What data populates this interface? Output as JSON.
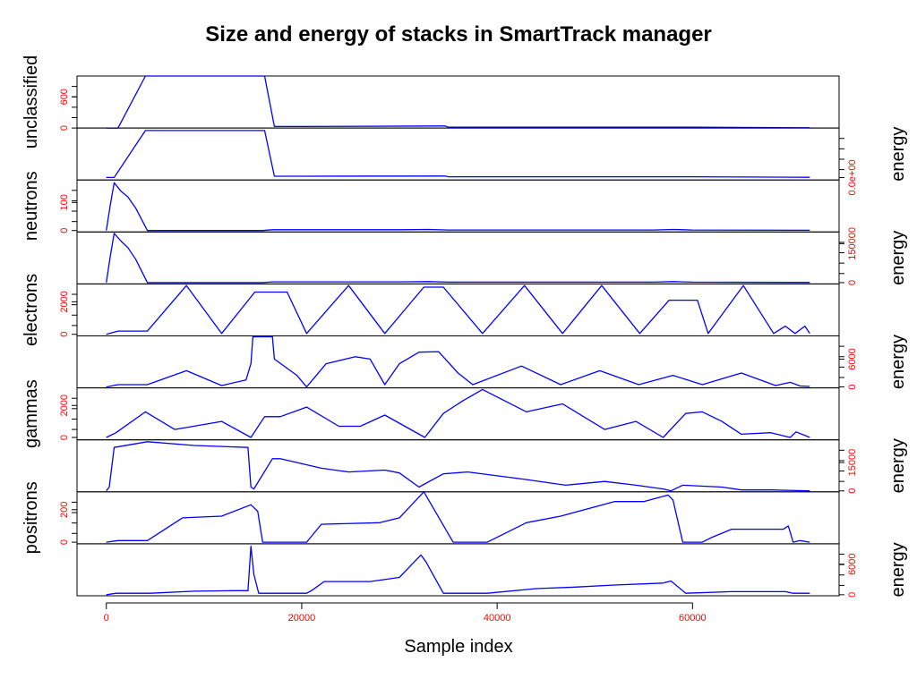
{
  "chart_data": {
    "type": "line",
    "title": "Size and energy of stacks in SmartTrack manager",
    "xlabel": "Sample index",
    "xlim": [
      -3000,
      75000
    ],
    "x_ticks": [
      0,
      20000,
      40000,
      60000
    ],
    "x_tick_labels": [
      "0",
      "20000",
      "40000",
      "60000"
    ],
    "grid": false,
    "panels": [
      {
        "stack": "unclassified",
        "quantity": "size",
        "axis_side": "left",
        "ylabel": "unclassified",
        "ylim": [
          0,
          1000
        ],
        "y_ticks": [
          0,
          600
        ],
        "y_tick_labels": [
          "0",
          "600"
        ],
        "x": [
          0,
          1200,
          4000,
          16200,
          17200,
          20000,
          34700,
          35000,
          60000,
          72000
        ],
        "y": [
          0,
          0,
          1000,
          1000,
          30,
          30,
          40,
          15,
          15,
          5
        ]
      },
      {
        "stack": "unclassified",
        "quantity": "energy",
        "axis_side": "right",
        "ylabel": "energy",
        "ylim": [
          -100000,
          2000000
        ],
        "y_ticks": [
          0
        ],
        "y_tick_labels": [
          "0.0e+00"
        ],
        "x": [
          0,
          800,
          4000,
          16200,
          17200,
          20000,
          34700,
          35000,
          60000,
          72000
        ],
        "y": [
          0,
          0,
          1900000,
          1900000,
          50000,
          50000,
          60000,
          30000,
          30000,
          10000
        ]
      },
      {
        "stack": "neutrons",
        "quantity": "size",
        "axis_side": "left",
        "ylabel": "neutrons",
        "ylim": [
          -5,
          180
        ],
        "y_ticks": [
          0,
          100
        ],
        "y_tick_labels": [
          "0",
          "100"
        ],
        "x": [
          0,
          400,
          800,
          1500,
          2200,
          3000,
          4200,
          10000,
          16000,
          17000,
          30000,
          33000,
          35000,
          40000,
          50000,
          56000,
          58000,
          60000,
          72000
        ],
        "y": [
          0,
          90,
          170,
          140,
          120,
          80,
          0,
          0,
          0,
          3,
          3,
          4,
          2,
          2,
          2,
          2,
          4,
          2,
          1
        ]
      },
      {
        "stack": "neutrons",
        "quantity": "energy",
        "axis_side": "right",
        "ylabel": "energy",
        "ylim": [
          -5000,
          195000
        ],
        "y_ticks": [
          0,
          150000
        ],
        "y_tick_labels": [
          "0",
          "150000"
        ],
        "x": [
          0,
          400,
          800,
          1500,
          2200,
          3000,
          4200,
          10000,
          16000,
          17000,
          30000,
          33000,
          35000,
          40000,
          50000,
          56000,
          58000,
          60000,
          72000
        ],
        "y": [
          0,
          100000,
          190000,
          160000,
          135000,
          90000,
          0,
          0,
          0,
          3000,
          3000,
          4000,
          2000,
          2000,
          2000,
          2000,
          4000,
          2000,
          1000
        ]
      },
      {
        "stack": "electrons",
        "quantity": "size",
        "axis_side": "left",
        "ylabel": "electrons",
        "ylim": [
          -100,
          3100
        ],
        "y_ticks": [
          0,
          2000
        ],
        "y_tick_labels": [
          "0",
          "2000"
        ],
        "x": [
          0,
          1200,
          4200,
          8200,
          11800,
          15200,
          18500,
          20500,
          24800,
          28500,
          32500,
          34500,
          38500,
          42800,
          46700,
          50700,
          54600,
          57600,
          60500,
          61600,
          65200,
          68300,
          69500,
          70500,
          71500,
          72000
        ],
        "y": [
          0,
          200,
          200,
          3000,
          50,
          2600,
          2600,
          50,
          3000,
          50,
          2900,
          2900,
          50,
          3000,
          50,
          3000,
          50,
          2100,
          2100,
          50,
          3000,
          50,
          500,
          50,
          500,
          50
        ]
      },
      {
        "stack": "electrons",
        "quantity": "energy",
        "axis_side": "right",
        "ylabel": "energy",
        "ylim": [
          -200,
          11000
        ],
        "y_ticks": [
          0,
          6000
        ],
        "y_tick_labels": [
          "0",
          "6000"
        ],
        "x": [
          0,
          1200,
          4200,
          8200,
          11800,
          14300,
          14800,
          15000,
          17000,
          17200,
          19500,
          20500,
          22500,
          25500,
          27000,
          28500,
          30000,
          32000,
          34000,
          36000,
          37500,
          42500,
          46500,
          50500,
          54500,
          58000,
          61000,
          65000,
          68500,
          70000,
          71000,
          72000
        ],
        "y": [
          0,
          500,
          500,
          3500,
          300,
          1500,
          5000,
          10800,
          10800,
          6000,
          2500,
          0,
          5000,
          6500,
          6000,
          500,
          5000,
          7500,
          7600,
          3000,
          500,
          4500,
          500,
          3500,
          500,
          2500,
          500,
          3000,
          300,
          1000,
          200,
          100
        ]
      },
      {
        "stack": "gammas",
        "quantity": "size",
        "axis_side": "left",
        "ylabel": "gammas",
        "ylim": [
          -150,
          3100
        ],
        "y_ticks": [
          0,
          2000
        ],
        "y_tick_labels": [
          "0",
          "2000"
        ],
        "x": [
          0,
          1000,
          4000,
          7000,
          11800,
          14800,
          16200,
          17800,
          20500,
          23800,
          26000,
          28500,
          32600,
          34500,
          36500,
          38500,
          43000,
          46700,
          51000,
          54200,
          57000,
          59300,
          61000,
          63000,
          65000,
          68000,
          70000,
          70600,
          72000
        ],
        "y": [
          0,
          300,
          1600,
          500,
          1000,
          0,
          1300,
          1300,
          1900,
          700,
          700,
          1400,
          0,
          1500,
          2300,
          3000,
          1600,
          2100,
          500,
          1000,
          0,
          1500,
          1600,
          1000,
          200,
          300,
          0,
          350,
          0
        ]
      },
      {
        "stack": "gammas",
        "quantity": "energy",
        "axis_side": "right",
        "ylabel": "energy",
        "ylim": [
          -500,
          27000
        ],
        "y_ticks": [
          0,
          15000
        ],
        "y_tick_labels": [
          "0",
          "15000"
        ],
        "x": [
          0,
          300,
          800,
          4200,
          9000,
          14500,
          14800,
          15100,
          17000,
          17800,
          22000,
          24800,
          28500,
          30000,
          32000,
          34500,
          37000,
          43000,
          47000,
          51000,
          54200,
          57000,
          57800,
          59000,
          63000,
          65000,
          68000,
          72000
        ],
        "y": [
          0,
          2000,
          23000,
          26000,
          24000,
          23000,
          2000,
          1000,
          17000,
          17000,
          12000,
          10000,
          11000,
          9500,
          2000,
          9000,
          10000,
          6000,
          3000,
          5000,
          3000,
          1000,
          0,
          3000,
          2000,
          500,
          500,
          0
        ]
      },
      {
        "stack": "positrons",
        "quantity": "size",
        "axis_side": "left",
        "ylabel": "positrons",
        "ylim": [
          -10,
          310
        ],
        "y_ticks": [
          0,
          200
        ],
        "y_tick_labels": [
          "0",
          "200"
        ],
        "x": [
          0,
          1200,
          4200,
          7800,
          11800,
          14800,
          15500,
          16000,
          20500,
          22000,
          28000,
          30000,
          32500,
          35500,
          39000,
          43000,
          46500,
          52000,
          55000,
          57500,
          58000,
          59000,
          61000,
          62000,
          64000,
          69300,
          69800,
          70300,
          71000,
          72000
        ],
        "y": [
          0,
          10,
          10,
          150,
          160,
          230,
          190,
          0,
          0,
          110,
          120,
          150,
          310,
          0,
          0,
          120,
          160,
          250,
          250,
          290,
          260,
          0,
          0,
          30,
          80,
          80,
          100,
          0,
          10,
          0
        ]
      },
      {
        "stack": "positrons",
        "quantity": "energy",
        "axis_side": "right",
        "ylabel": "energy",
        "ylim": [
          -200,
          10000
        ],
        "y_ticks": [
          0,
          6000
        ],
        "y_tick_labels": [
          "0",
          "6000"
        ],
        "x": [
          0,
          1000,
          4500,
          9000,
          13000,
          14500,
          14800,
          15100,
          15600,
          20500,
          21000,
          22300,
          27000,
          30000,
          32200,
          32700,
          34500,
          35500,
          39000,
          44000,
          48000,
          52000,
          57000,
          57800,
          59300,
          64000,
          69500,
          70300,
          72000
        ],
        "y": [
          0,
          300,
          300,
          700,
          800,
          800,
          9500,
          4000,
          300,
          300,
          800,
          2600,
          2600,
          3400,
          7800,
          6500,
          300,
          300,
          300,
          1200,
          1500,
          1900,
          2300,
          2700,
          300,
          600,
          600,
          300,
          300
        ]
      }
    ]
  }
}
